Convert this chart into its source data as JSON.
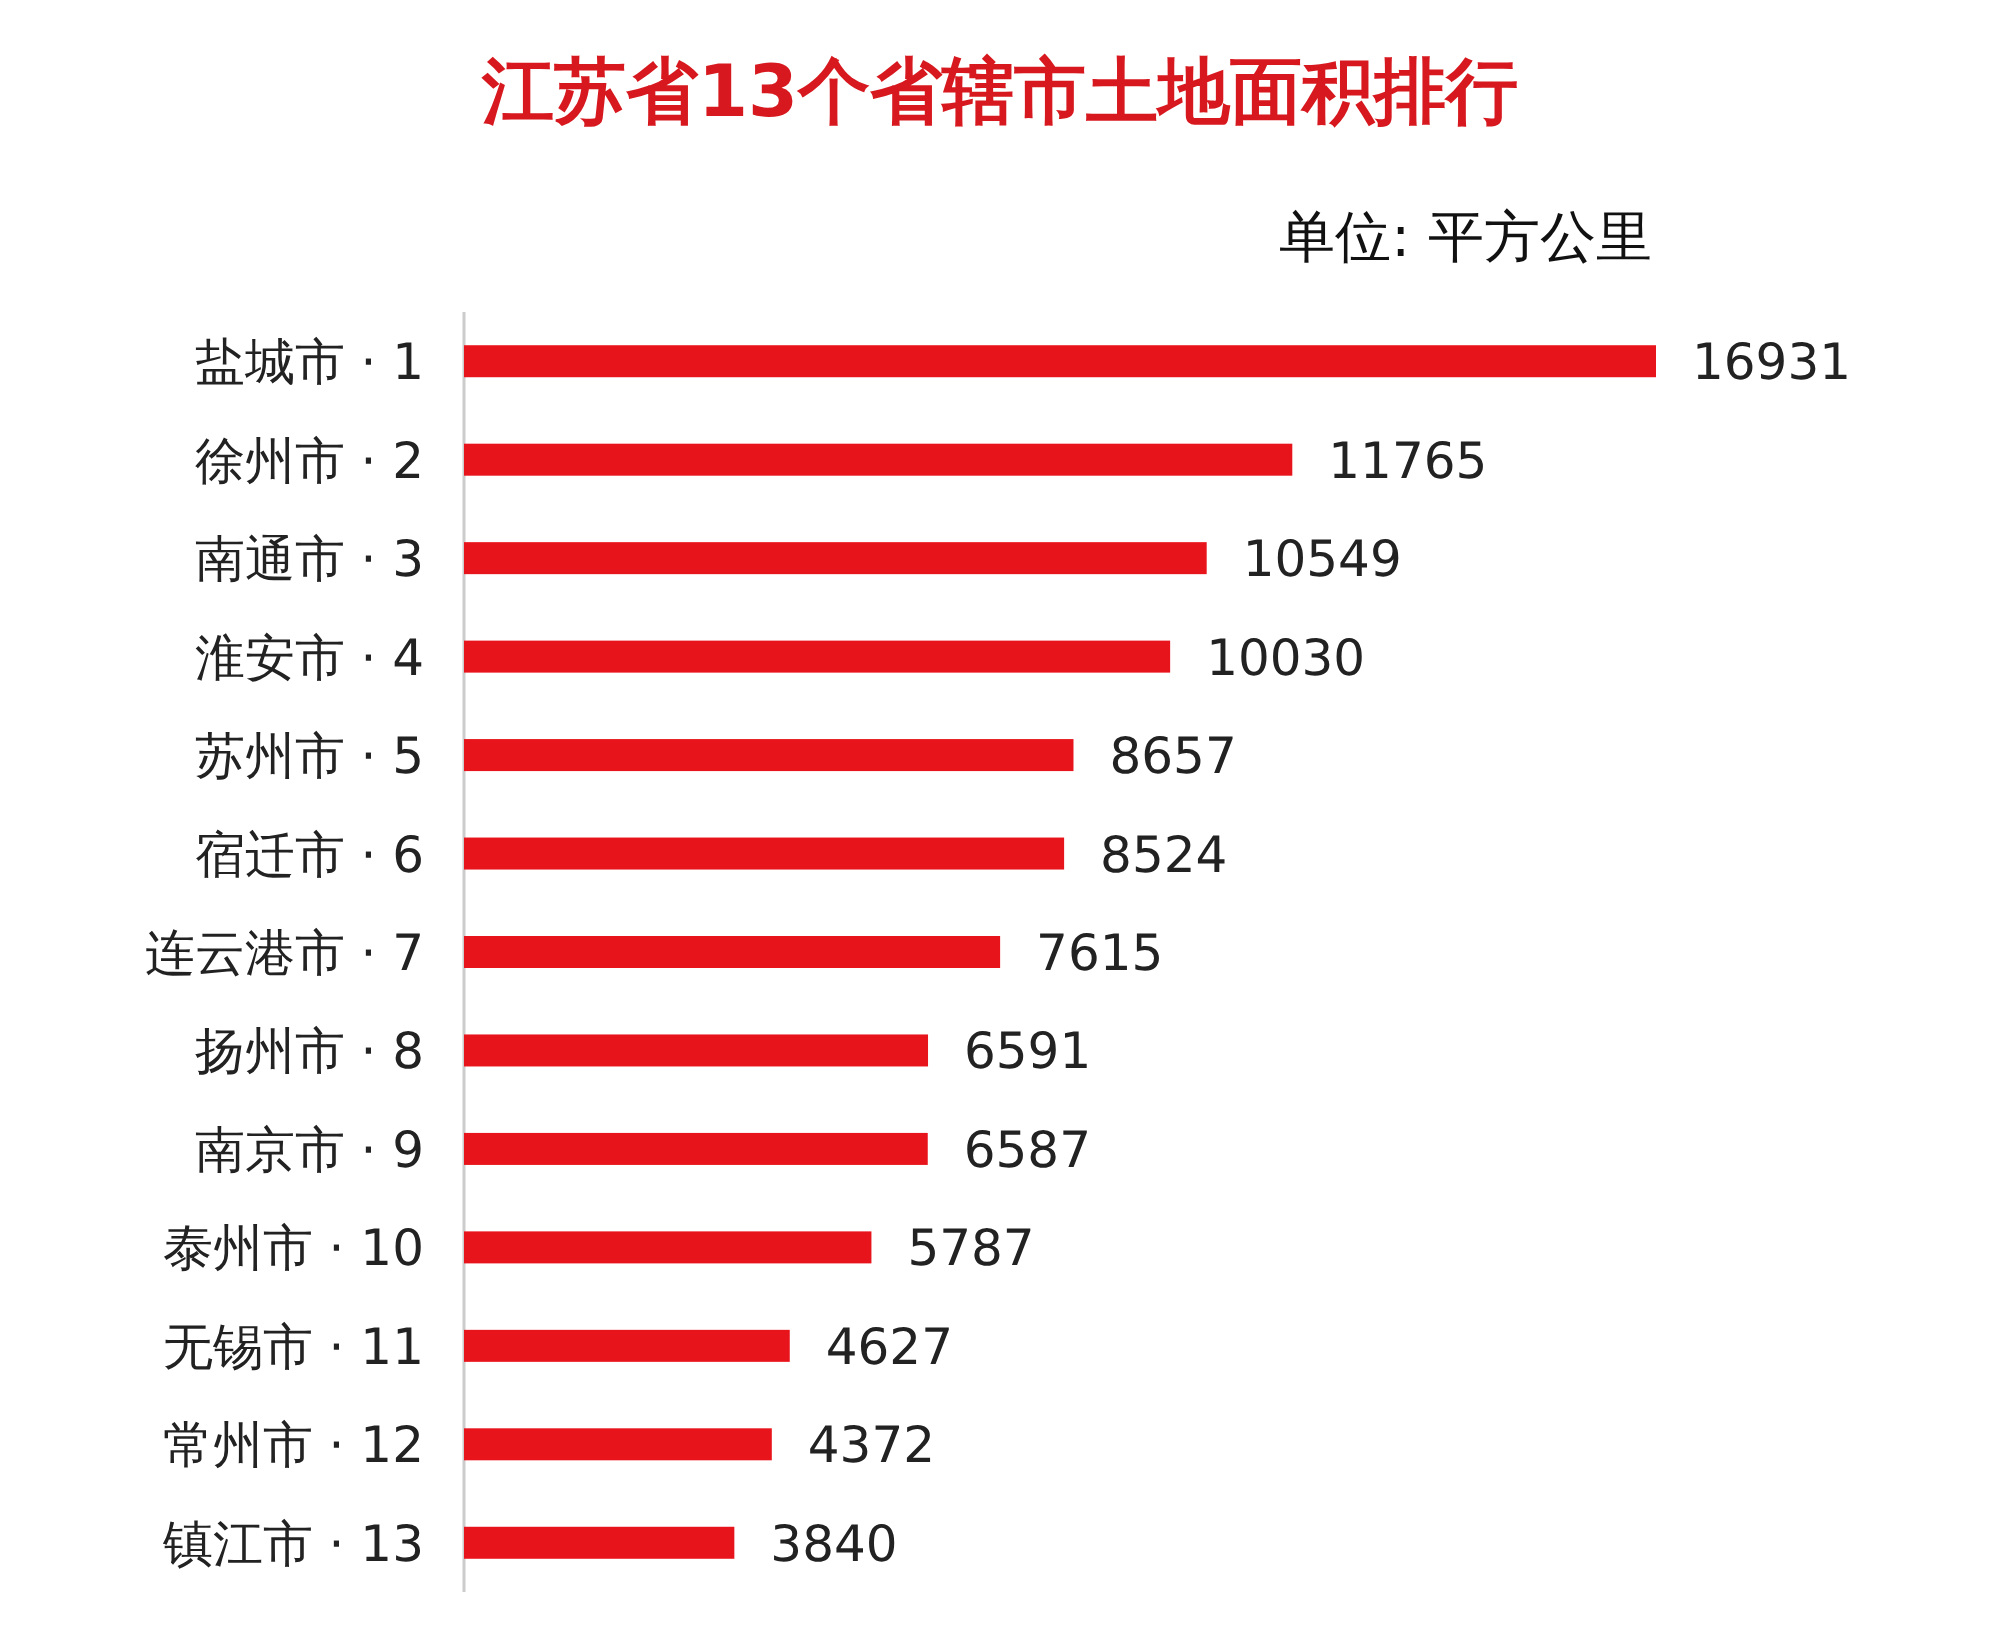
{
  "chart_data": {
    "type": "bar",
    "orientation": "horizontal",
    "title": "江苏省13个省辖市土地面积排行",
    "subtitle": "单位: 平方公里",
    "categories": [
      "盐城市 · 1",
      "徐州市 · 2",
      "南通市 · 3",
      "淮安市 · 4",
      "苏州市 · 5",
      "宿迁市 · 6",
      "连云港市 · 7",
      "扬州市 · 8",
      "南京市 · 9",
      "泰州市 · 10",
      "无锡市 · 11",
      "常州市 · 12",
      "镇江市 · 13"
    ],
    "values": [
      16931,
      11765,
      10549,
      10030,
      8657,
      8524,
      7615,
      6591,
      6587,
      5787,
      4627,
      4372,
      3840
    ],
    "color": "#e8141c",
    "data_labels": true
  }
}
